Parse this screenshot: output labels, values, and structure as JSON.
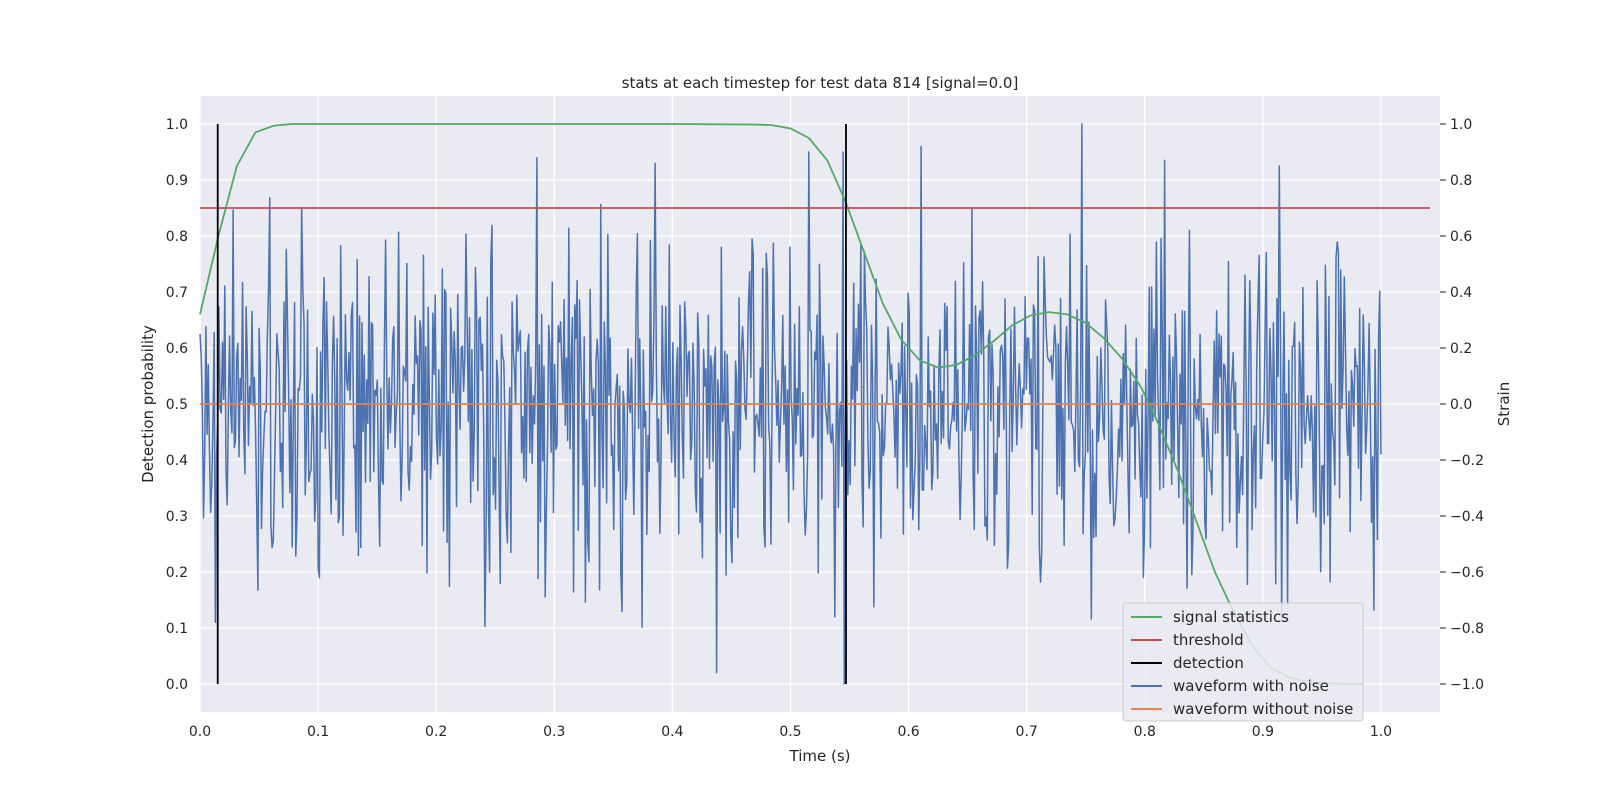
{
  "chart_data": {
    "type": "line",
    "title": "stats at each timestep for test data 814 [signal=0.0]",
    "xlabel": "Time (s)",
    "ylabel_left": "Detection probability",
    "ylabel_right": "Strain",
    "xlim": [
      0.0,
      1.05
    ],
    "ylim_left": [
      -0.05,
      1.05
    ],
    "ylim_right": [
      -1.1,
      1.1
    ],
    "x_ticks": [
      "0.0",
      "0.1",
      "0.2",
      "0.3",
      "0.4",
      "0.5",
      "0.6",
      "0.7",
      "0.8",
      "0.9",
      "1.0"
    ],
    "y_ticks_left": [
      "0.0",
      "0.1",
      "0.2",
      "0.3",
      "0.4",
      "0.5",
      "0.6",
      "0.7",
      "0.8",
      "0.9",
      "1.0"
    ],
    "y_ticks_right": [
      "−1.0",
      "−0.8",
      "−0.6",
      "−0.4",
      "−0.2",
      "0.0",
      "0.2",
      "0.4",
      "0.6",
      "0.8",
      "1.0"
    ],
    "grid": true,
    "legend_position": "lower-right",
    "threshold": 0.85,
    "detections": [
      0.015,
      0.547
    ],
    "signal_statistics": {
      "x": [
        0.0,
        0.0156,
        0.0312,
        0.0469,
        0.0625,
        0.0781,
        0.1,
        0.2,
        0.3,
        0.4,
        0.47,
        0.4844,
        0.5,
        0.5156,
        0.5312,
        0.5469,
        0.5625,
        0.5781,
        0.5938,
        0.6094,
        0.625,
        0.6406,
        0.6562,
        0.6719,
        0.6875,
        0.7031,
        0.7188,
        0.7344,
        0.75,
        0.7656,
        0.7812,
        0.7969,
        0.8125,
        0.8281,
        0.8438,
        0.8594,
        0.875,
        0.8906,
        0.9062,
        0.9219,
        0.9375,
        0.9531,
        0.9688,
        0.9844
      ],
      "y": [
        0.66,
        0.8,
        0.925,
        0.985,
        0.997,
        1.0,
        1.0,
        1.0,
        1.0,
        1.0,
        0.999,
        0.998,
        0.992,
        0.975,
        0.935,
        0.86,
        0.77,
        0.68,
        0.615,
        0.578,
        0.565,
        0.57,
        0.587,
        0.612,
        0.64,
        0.658,
        0.664,
        0.66,
        0.645,
        0.617,
        0.58,
        0.53,
        0.46,
        0.38,
        0.29,
        0.2,
        0.13,
        0.07,
        0.03,
        0.012,
        0.004,
        0.0015,
        0.0005,
        0.0003
      ]
    },
    "waveform_without_noise": {
      "x": [
        0.0,
        1.0
      ],
      "y": [
        0.0,
        0.0
      ]
    },
    "waveform_with_noise": {
      "x_start": 0.0,
      "x_end": 1.0,
      "n_points": 1000,
      "amplitude_std": 0.3,
      "y_min": -1.0,
      "y_max": 1.0,
      "peaks": [
        {
          "x": 0.2848,
          "y": 0.88
        },
        {
          "x": 0.3854,
          "y": 0.86
        },
        {
          "x": 0.6104,
          "y": 0.92
        },
        {
          "x": 0.7466,
          "y": 1.0
        },
        {
          "x": 0.8168,
          "y": 0.87
        },
        {
          "x": 0.9136,
          "y": 0.85
        },
        {
          "x": 0.5453,
          "y": -1.0
        },
        {
          "x": 0.4371,
          "y": -0.96
        },
        {
          "x": 0.0133,
          "y": -0.78
        }
      ]
    },
    "legend": [
      {
        "label": "signal statistics",
        "color": "#55a868"
      },
      {
        "label": "threshold",
        "color": "#c44e52"
      },
      {
        "label": "detection",
        "color": "#000000"
      },
      {
        "label": "waveform with noise",
        "color": "#4c72b0"
      },
      {
        "label": "waveform without noise",
        "color": "#dd8452"
      }
    ]
  },
  "colors": {
    "plot_background": "#eaeaf2",
    "grid": "#ffffff",
    "signal": "#55a868",
    "threshold": "#c44e52",
    "detection": "#000000",
    "noisy": "#4c72b0",
    "clean": "#dd8452"
  }
}
